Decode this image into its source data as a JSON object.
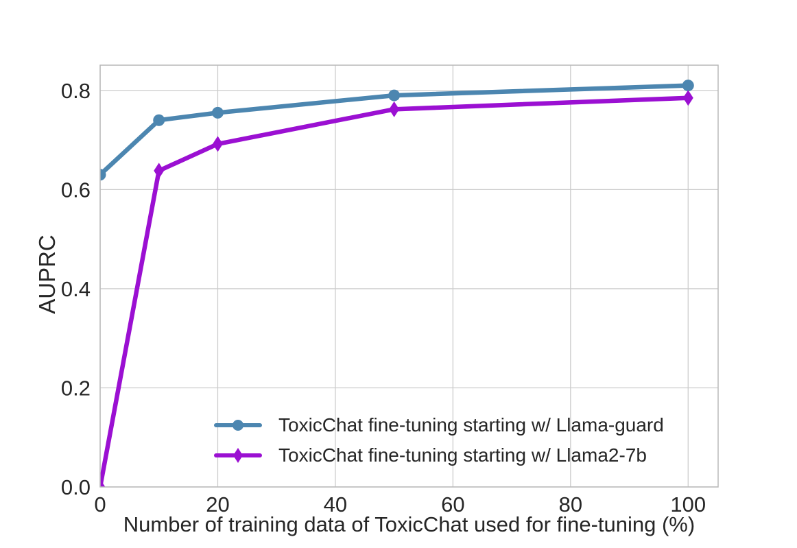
{
  "figure": {
    "background": "#ffffff"
  },
  "chart_data": {
    "type": "line",
    "title": "",
    "xlabel": "Number of training data of ToxicChat used for fine-tuning (%)",
    "ylabel": "AUPRC",
    "x": [
      0,
      10,
      20,
      50,
      100
    ],
    "series": [
      {
        "name": "ToxicChat fine-tuning starting w/ Llama-guard",
        "color": "#4C86B0",
        "marker": "circle",
        "values": [
          0.63,
          0.74,
          0.755,
          0.79,
          0.81
        ]
      },
      {
        "name": "ToxicChat fine-tuning starting w/ Llama2-7b",
        "color": "#9B10D2",
        "marker": "diamond",
        "values": [
          0.0,
          0.638,
          0.692,
          0.762,
          0.785
        ]
      }
    ],
    "xticks": [
      "0",
      "20",
      "40",
      "60",
      "80",
      "100"
    ],
    "yticks": [
      "0.0",
      "0.2",
      "0.4",
      "0.6",
      "0.8"
    ],
    "xlim": [
      0,
      105.1
    ],
    "ylim": [
      0,
      0.851
    ],
    "grid": true,
    "grid_color": "#cccccc",
    "spine_color": "#b9b9b9",
    "text_color": "#262626",
    "legend_position": "inside-lower-center"
  }
}
